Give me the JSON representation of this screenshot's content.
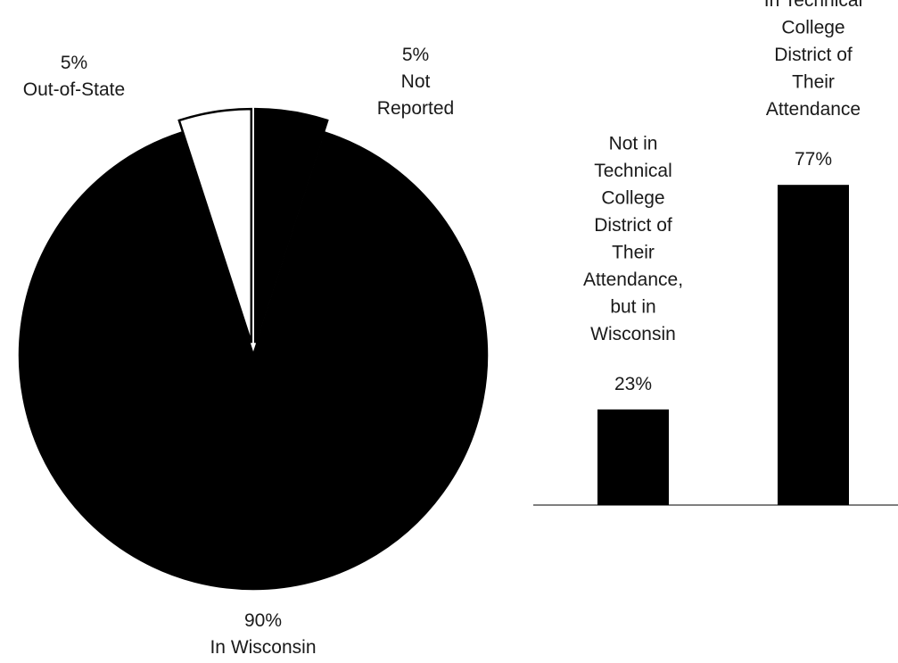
{
  "chart_data": [
    {
      "type": "pie",
      "title": "",
      "slices": [
        {
          "label": "In Wisconsin",
          "value": 90,
          "value_label": "90%",
          "color": "#000000",
          "exploded": false
        },
        {
          "label": "Out-of-State",
          "value": 5,
          "value_label": "5%",
          "color": "#ffffff",
          "exploded": true
        },
        {
          "label": "Not Reported",
          "value": 5,
          "value_label": "5%",
          "color": "#000000",
          "exploded": true
        }
      ]
    },
    {
      "type": "bar",
      "title": "",
      "xlabel": "",
      "ylabel": "",
      "ylim": [
        0,
        100
      ],
      "grid": false,
      "bar_color": "#000000",
      "categories": [
        "Not in Technical College District of Their Attendance, but in Wisconsin",
        "In Technical College District of Their Attendance"
      ],
      "category_lines": [
        [
          "Not in",
          "Technical",
          "College",
          "District of",
          "Their",
          "Attendance,",
          "but in",
          "Wisconsin"
        ],
        [
          "In Technical",
          "College",
          "District of",
          "Their",
          "Attendance"
        ]
      ],
      "values": [
        23,
        77
      ],
      "value_labels": [
        "23%",
        "77%"
      ]
    }
  ]
}
